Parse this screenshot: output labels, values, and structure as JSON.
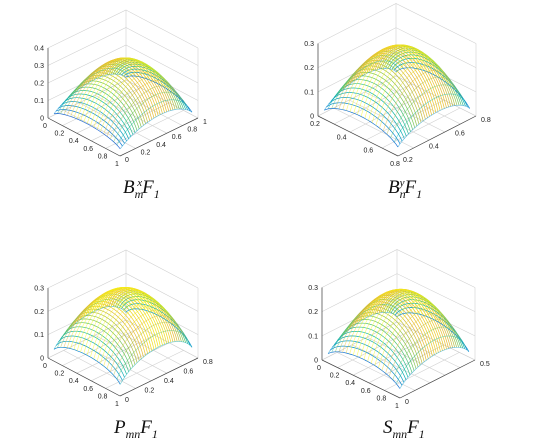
{
  "chart_data": [
    {
      "type": "surface",
      "caption": {
        "base": "B",
        "sup": "x",
        "sub": "m",
        "rest": "F",
        "rest_sub": "1"
      },
      "z_ticks": [
        "0",
        "0.1",
        "0.2",
        "0.3",
        "0.4"
      ],
      "x_ticks": [
        "0",
        "0.2",
        "0.4",
        "0.6",
        "0.8",
        "1"
      ],
      "y_ticks": [
        "0",
        "0.2",
        "0.4",
        "0.6",
        "0.8",
        "1"
      ],
      "zlim": [
        0,
        0.4
      ],
      "xlim": [
        0,
        1
      ],
      "ylim": [
        0,
        1
      ],
      "peak": 0.35,
      "grid": true,
      "colormap": "parula"
    },
    {
      "type": "surface",
      "caption": {
        "base": "B",
        "sup": "y",
        "sub": "n",
        "rest": "F",
        "rest_sub": "1"
      },
      "z_ticks": [
        "0",
        "0.1",
        "0.2",
        "0.3"
      ],
      "x_ticks": [
        "0.2",
        "0.4",
        "0.6",
        "0.8"
      ],
      "y_ticks": [
        "0.2",
        "0.4",
        "0.6",
        "0.8"
      ],
      "zlim": [
        0,
        0.3
      ],
      "xlim": [
        0.15,
        0.9
      ],
      "ylim": [
        0.15,
        0.9
      ],
      "peak": 0.3,
      "grid": true,
      "colormap": "parula"
    },
    {
      "type": "surface",
      "caption": {
        "base": "P",
        "sup": "",
        "sub": "mn",
        "rest": "F",
        "rest_sub": "1"
      },
      "z_ticks": [
        "0",
        "0.1",
        "0.2",
        "0.3"
      ],
      "x_ticks": [
        "0",
        "0.2",
        "0.4",
        "0.6",
        "0.8",
        "1"
      ],
      "y_ticks": [
        "0",
        "0.2",
        "0.4",
        "0.6",
        "0.8"
      ],
      "zlim": [
        0,
        0.3
      ],
      "xlim": [
        0,
        1
      ],
      "ylim": [
        0,
        0.9
      ],
      "peak": 0.3,
      "grid": true,
      "colormap": "parula"
    },
    {
      "type": "surface",
      "caption": {
        "base": "S",
        "sup": "",
        "sub": "mn",
        "rest": "F",
        "rest_sub": "1"
      },
      "z_ticks": [
        "0",
        "0.1",
        "0.2",
        "0.3"
      ],
      "x_ticks": [
        "0",
        "0.2",
        "0.4",
        "0.6",
        "0.8",
        "1"
      ],
      "y_ticks": [
        "0",
        "0.5"
      ],
      "zlim": [
        0,
        0.3
      ],
      "xlim": [
        0,
        1
      ],
      "ylim": [
        0,
        0.8
      ],
      "peak": 0.3,
      "grid": true,
      "colormap": "parula"
    }
  ]
}
